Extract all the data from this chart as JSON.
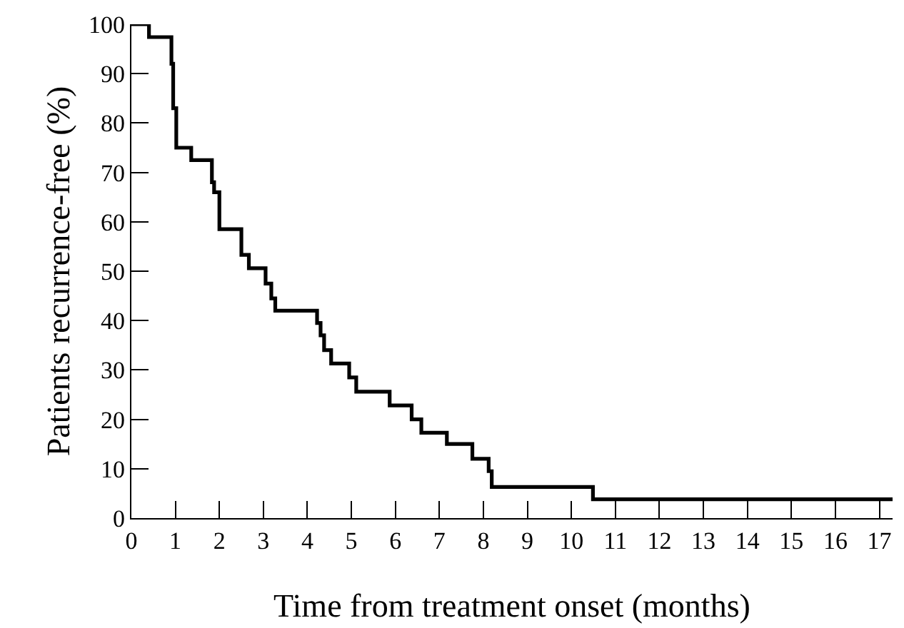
{
  "chart_data": {
    "type": "step",
    "xlabel": "Time from treatment onset (months)",
    "ylabel": "Patients recurrence-free (%)",
    "x": [
      0,
      0.4,
      0.91,
      0.95,
      1.02,
      1.36,
      1.83,
      1.88,
      2.0,
      2.5,
      2.67,
      3.05,
      3.18,
      3.27,
      4.22,
      4.3,
      4.38,
      4.54,
      4.95,
      5.11,
      5.87,
      6.37,
      6.59,
      7.17,
      7.75,
      8.12,
      8.19,
      10.49,
      17.3
    ],
    "series": [
      {
        "color": "#000000",
        "values": [
          100,
          97.4,
          92,
          83,
          75,
          72.5,
          68,
          66,
          58.5,
          53.3,
          50.6,
          47.5,
          44.5,
          42,
          39.5,
          37,
          34,
          31.3,
          28.5,
          25.6,
          22.8,
          20,
          17.3,
          15,
          12,
          9.5,
          6.3,
          3.8,
          3.8
        ]
      }
    ],
    "xlim": [
      0,
      17.3
    ],
    "xticks": [
      0,
      1,
      2,
      3,
      4,
      5,
      6,
      7,
      8,
      9,
      10,
      11,
      12,
      13,
      14,
      15,
      16,
      17
    ],
    "ylim": [
      0,
      100
    ],
    "yticks": [
      0,
      10,
      20,
      30,
      40,
      50,
      60,
      70,
      80,
      90,
      100
    ],
    "marker": "none",
    "line_style": "solid"
  }
}
